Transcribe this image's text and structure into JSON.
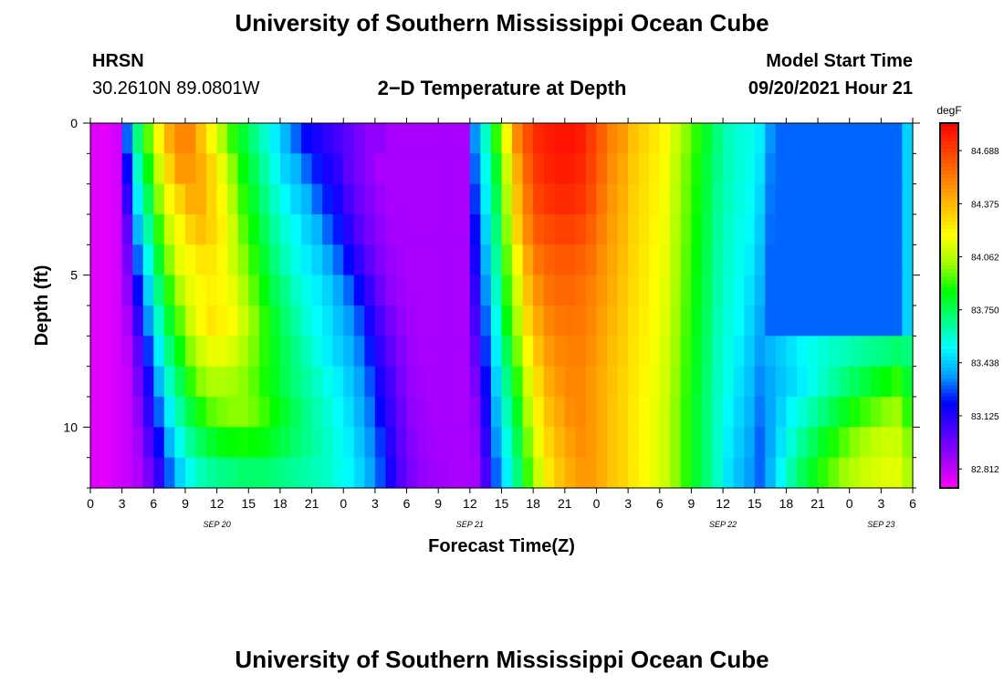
{
  "header": {
    "title": "University of Southern Mississippi Ocean Cube",
    "station_id": "HRSN",
    "station_coords": "30.2610N  89.0801W",
    "plot_title": "2−D Temperature at Depth",
    "model_label": "Model Start Time",
    "model_time": "09/20/2021 Hour 21"
  },
  "footer": {
    "title": "University of Southern Mississippi Ocean Cube"
  },
  "chart_data": {
    "type": "heatmap",
    "title": "2−D Temperature at Depth",
    "xlabel": "Forecast Time(Z)",
    "ylabel": "Depth (ft)",
    "ylim": [
      0,
      12
    ],
    "y_ticks": [
      0,
      5,
      10
    ],
    "x_range_hours": [
      0,
      78
    ],
    "x_tick_labels": [
      "0",
      "3",
      "6",
      "9",
      "12",
      "15",
      "18",
      "21",
      "0",
      "3",
      "6",
      "9",
      "12",
      "15",
      "18",
      "21",
      "0",
      "3",
      "6",
      "9",
      "12",
      "15",
      "18",
      "21",
      "0",
      "3",
      "6"
    ],
    "date_labels": [
      {
        "label": "SEP 20",
        "hour": 12
      },
      {
        "label": "SEP 21",
        "hour": 36
      },
      {
        "label": "SEP 22",
        "hour": 60
      },
      {
        "label": "SEP 23",
        "hour": 75
      }
    ],
    "colorbar": {
      "unit": "degF",
      "min": 82.7,
      "max": 84.85,
      "tick_values": [
        "82.812",
        "83.125",
        "83.438",
        "83.750",
        "84.062",
        "84.375",
        "84.688"
      ],
      "colors": [
        "#ff00ff",
        "#a000ff",
        "#5000ff",
        "#0000ff",
        "#00a0ff",
        "#00ffff",
        "#00ff80",
        "#00ff00",
        "#a0ff00",
        "#ffff00",
        "#ffc000",
        "#ff8000",
        "#ff4000",
        "#ff0000"
      ]
    },
    "depth_levels": [
      0.5,
      1.5,
      2.5,
      3.5,
      4.5,
      5.5,
      6.5,
      7.5,
      8.5,
      9.5,
      10.5,
      11.5
    ],
    "time_hours": [
      0,
      1,
      2,
      3,
      4,
      5,
      6,
      7,
      8,
      9,
      10,
      11,
      12,
      13,
      14,
      15,
      16,
      17,
      18,
      19,
      20,
      21,
      22,
      23,
      24,
      25,
      26,
      27,
      28,
      29,
      30,
      31,
      32,
      33,
      34,
      35,
      36,
      37,
      38,
      39,
      40,
      41,
      42,
      43,
      44,
      45,
      46,
      47,
      48,
      49,
      50,
      51,
      52,
      53,
      54,
      55,
      56,
      57,
      58,
      59,
      60,
      61,
      62,
      63,
      64,
      65,
      66,
      67,
      68,
      69,
      70,
      71,
      72,
      73,
      74,
      75,
      76,
      77
    ],
    "values": [
      [
        82.75,
        82.75,
        82.78,
        83.3,
        83.7,
        83.95,
        84.2,
        84.4,
        84.5,
        84.5,
        84.35,
        84.2,
        84.05,
        83.9,
        83.8,
        83.7,
        83.6,
        83.5,
        83.4,
        83.3,
        83.2,
        83.15,
        83.1,
        83.05,
        83.0,
        82.95,
        82.9,
        82.9,
        82.85,
        82.85,
        82.85,
        82.85,
        82.85,
        82.85,
        82.85,
        82.85,
        83.35,
        83.6,
        83.9,
        84.2,
        84.5,
        84.65,
        84.75,
        84.78,
        84.8,
        84.8,
        84.78,
        84.7,
        84.6,
        84.5,
        84.45,
        84.35,
        84.3,
        84.25,
        84.2,
        84.1,
        84.0,
        83.9,
        83.8,
        83.7,
        83.62,
        83.58,
        83.56,
        83.5,
        83.35,
        83.3,
        83.3,
        83.3,
        83.3,
        83.3,
        83.3,
        83.3,
        83.3,
        83.3,
        83.3,
        83.3,
        83.3,
        83.45
      ],
      [
        82.75,
        82.75,
        82.78,
        83.2,
        83.6,
        83.85,
        84.1,
        84.3,
        84.45,
        84.45,
        84.4,
        84.3,
        84.15,
        84.0,
        83.85,
        83.75,
        83.65,
        83.55,
        83.45,
        83.4,
        83.3,
        83.22,
        83.15,
        83.1,
        83.0,
        82.95,
        82.9,
        82.85,
        82.85,
        82.85,
        82.85,
        82.85,
        82.85,
        82.85,
        82.85,
        82.85,
        83.3,
        83.55,
        83.8,
        84.1,
        84.4,
        84.6,
        84.72,
        84.76,
        84.78,
        84.78,
        84.75,
        84.68,
        84.58,
        84.48,
        84.42,
        84.33,
        84.28,
        84.23,
        84.18,
        84.08,
        83.98,
        83.88,
        83.78,
        83.68,
        83.62,
        83.58,
        83.55,
        83.48,
        83.33,
        83.3,
        83.3,
        83.3,
        83.3,
        83.3,
        83.3,
        83.3,
        83.3,
        83.3,
        83.3,
        83.3,
        83.3,
        83.45
      ],
      [
        82.75,
        82.75,
        82.78,
        83.1,
        83.5,
        83.75,
        84.0,
        84.2,
        84.3,
        84.4,
        84.4,
        84.3,
        84.2,
        84.05,
        83.9,
        83.8,
        83.7,
        83.6,
        83.52,
        83.45,
        83.4,
        83.3,
        83.22,
        83.15,
        83.05,
        82.98,
        82.92,
        82.88,
        82.85,
        82.85,
        82.85,
        82.85,
        82.85,
        82.85,
        82.85,
        82.85,
        83.25,
        83.5,
        83.75,
        84.05,
        84.35,
        84.55,
        84.68,
        84.72,
        84.74,
        84.74,
        84.72,
        84.65,
        84.55,
        84.46,
        84.4,
        84.31,
        84.27,
        84.22,
        84.17,
        84.07,
        83.97,
        83.87,
        83.77,
        83.67,
        83.61,
        83.57,
        83.54,
        83.46,
        83.32,
        83.3,
        83.3,
        83.3,
        83.3,
        83.3,
        83.3,
        83.3,
        83.3,
        83.3,
        83.3,
        83.3,
        83.3,
        83.45
      ],
      [
        82.75,
        82.75,
        82.78,
        83.0,
        83.4,
        83.65,
        83.9,
        84.1,
        84.2,
        84.3,
        84.35,
        84.3,
        84.22,
        84.1,
        83.95,
        83.85,
        83.75,
        83.65,
        83.58,
        83.52,
        83.45,
        83.4,
        83.3,
        83.22,
        83.12,
        83.02,
        82.95,
        82.9,
        82.86,
        82.85,
        82.85,
        82.85,
        82.85,
        82.85,
        82.85,
        82.85,
        83.2,
        83.45,
        83.7,
        84.0,
        84.3,
        84.5,
        84.62,
        84.66,
        84.68,
        84.68,
        84.66,
        84.6,
        84.52,
        84.44,
        84.38,
        84.3,
        84.26,
        84.21,
        84.16,
        84.06,
        83.96,
        83.86,
        83.76,
        83.66,
        83.6,
        83.56,
        83.52,
        83.44,
        83.31,
        83.3,
        83.3,
        83.3,
        83.3,
        83.3,
        83.3,
        83.3,
        83.3,
        83.3,
        83.3,
        83.3,
        83.3,
        83.45
      ],
      [
        82.75,
        82.75,
        82.78,
        82.95,
        83.3,
        83.55,
        83.8,
        84.0,
        84.15,
        84.2,
        84.25,
        84.25,
        84.2,
        84.1,
        84.0,
        83.9,
        83.8,
        83.7,
        83.62,
        83.56,
        83.5,
        83.45,
        83.38,
        83.3,
        83.2,
        83.1,
        83.0,
        82.93,
        82.88,
        82.86,
        82.85,
        82.85,
        82.85,
        82.85,
        82.85,
        82.85,
        83.15,
        83.4,
        83.65,
        83.95,
        84.2,
        84.42,
        84.55,
        84.6,
        84.62,
        84.62,
        84.6,
        84.56,
        84.48,
        84.42,
        84.36,
        84.29,
        84.25,
        84.2,
        84.15,
        84.05,
        83.95,
        83.85,
        83.75,
        83.65,
        83.59,
        83.55,
        83.5,
        83.42,
        83.3,
        83.3,
        83.3,
        83.3,
        83.3,
        83.3,
        83.3,
        83.3,
        83.3,
        83.3,
        83.3,
        83.3,
        83.3,
        83.45
      ],
      [
        82.75,
        82.75,
        82.78,
        82.9,
        83.2,
        83.45,
        83.7,
        83.9,
        84.05,
        84.15,
        84.2,
        84.22,
        84.2,
        84.15,
        84.05,
        83.95,
        83.85,
        83.75,
        83.68,
        83.6,
        83.55,
        83.5,
        83.45,
        83.38,
        83.3,
        83.2,
        83.08,
        82.98,
        82.9,
        82.87,
        82.85,
        82.85,
        82.85,
        82.85,
        82.85,
        82.85,
        83.1,
        83.35,
        83.6,
        83.9,
        84.12,
        84.35,
        84.48,
        84.55,
        84.58,
        84.58,
        84.56,
        84.52,
        84.46,
        84.4,
        84.34,
        84.28,
        84.24,
        84.19,
        84.14,
        84.04,
        83.94,
        83.84,
        83.74,
        83.64,
        83.58,
        83.54,
        83.48,
        83.4,
        83.3,
        83.3,
        83.3,
        83.3,
        83.3,
        83.3,
        83.3,
        83.3,
        83.3,
        83.3,
        83.3,
        83.3,
        83.3,
        83.45
      ],
      [
        82.75,
        82.75,
        82.78,
        82.85,
        83.1,
        83.35,
        83.6,
        83.8,
        83.95,
        84.1,
        84.2,
        84.25,
        84.22,
        84.18,
        84.1,
        84.0,
        83.9,
        83.8,
        83.72,
        83.65,
        83.58,
        83.53,
        83.48,
        83.42,
        83.36,
        83.28,
        83.15,
        83.05,
        82.95,
        82.9,
        82.86,
        82.85,
        82.85,
        82.85,
        82.85,
        82.85,
        83.05,
        83.3,
        83.55,
        83.85,
        84.05,
        84.28,
        84.42,
        84.5,
        84.54,
        84.55,
        84.54,
        84.5,
        84.44,
        84.38,
        84.33,
        84.27,
        84.23,
        84.18,
        84.13,
        84.03,
        83.93,
        83.83,
        83.73,
        83.63,
        83.57,
        83.53,
        83.46,
        83.38,
        83.3,
        83.3,
        83.3,
        83.3,
        83.3,
        83.3,
        83.3,
        83.3,
        83.3,
        83.3,
        83.3,
        83.3,
        83.3,
        83.45
      ],
      [
        82.75,
        82.75,
        82.78,
        82.82,
        83.0,
        83.25,
        83.5,
        83.7,
        83.85,
        84.0,
        84.1,
        84.15,
        84.15,
        84.12,
        84.05,
        83.98,
        83.9,
        83.82,
        83.75,
        83.68,
        83.62,
        83.56,
        83.5,
        83.45,
        83.4,
        83.33,
        83.22,
        83.1,
        83.0,
        82.92,
        82.87,
        82.85,
        82.85,
        82.85,
        82.85,
        82.85,
        83.0,
        83.25,
        83.5,
        83.75,
        83.98,
        84.2,
        84.35,
        84.45,
        84.5,
        84.52,
        84.52,
        84.48,
        84.42,
        84.36,
        84.32,
        84.26,
        84.22,
        84.17,
        84.12,
        84.02,
        83.92,
        83.82,
        83.72,
        83.62,
        83.56,
        83.5,
        83.44,
        83.36,
        83.4,
        83.44,
        83.48,
        83.52,
        83.55,
        83.58,
        83.6,
        83.62,
        83.64,
        83.66,
        83.68,
        83.7,
        83.72,
        83.7
      ],
      [
        82.75,
        82.75,
        82.78,
        82.8,
        82.95,
        83.15,
        83.4,
        83.6,
        83.75,
        83.9,
        84.0,
        84.05,
        84.05,
        84.03,
        84.0,
        83.95,
        83.88,
        83.82,
        83.76,
        83.7,
        83.65,
        83.6,
        83.55,
        83.5,
        83.44,
        83.37,
        83.28,
        83.15,
        83.05,
        82.95,
        82.88,
        82.86,
        82.85,
        82.85,
        82.85,
        82.85,
        82.95,
        83.2,
        83.45,
        83.68,
        83.9,
        84.12,
        84.28,
        84.4,
        84.46,
        84.5,
        84.5,
        84.46,
        84.4,
        84.35,
        84.3,
        84.25,
        84.21,
        84.16,
        84.11,
        84.01,
        83.91,
        83.81,
        83.71,
        83.61,
        83.55,
        83.48,
        83.42,
        83.34,
        83.38,
        83.42,
        83.46,
        83.5,
        83.55,
        83.6,
        83.65,
        83.7,
        83.74,
        83.78,
        83.82,
        83.86,
        83.9,
        83.8
      ],
      [
        82.75,
        82.75,
        82.78,
        82.8,
        82.9,
        83.1,
        83.3,
        83.5,
        83.65,
        83.78,
        83.88,
        83.95,
        83.98,
        84.0,
        84.0,
        83.97,
        83.92,
        83.86,
        83.8,
        83.74,
        83.68,
        83.63,
        83.58,
        83.53,
        83.47,
        83.4,
        83.32,
        83.2,
        83.08,
        82.98,
        82.9,
        82.87,
        82.85,
        82.85,
        82.85,
        82.85,
        82.9,
        83.15,
        83.4,
        83.62,
        83.82,
        84.05,
        84.22,
        84.35,
        84.42,
        84.48,
        84.5,
        84.46,
        84.4,
        84.34,
        84.3,
        84.24,
        84.2,
        84.15,
        84.1,
        84.0,
        83.9,
        83.8,
        83.7,
        83.6,
        83.52,
        83.46,
        83.4,
        83.32,
        83.38,
        83.45,
        83.52,
        83.58,
        83.64,
        83.7,
        83.76,
        83.82,
        83.88,
        83.92,
        83.96,
        84.0,
        84.02,
        83.9
      ],
      [
        82.75,
        82.75,
        82.78,
        82.8,
        82.86,
        83.02,
        83.2,
        83.4,
        83.55,
        83.66,
        83.74,
        83.8,
        83.84,
        83.86,
        83.87,
        83.86,
        83.84,
        83.8,
        83.76,
        83.72,
        83.68,
        83.64,
        83.6,
        83.55,
        83.5,
        83.43,
        83.35,
        83.25,
        83.12,
        83.0,
        82.92,
        82.88,
        82.86,
        82.85,
        82.85,
        82.85,
        82.88,
        83.1,
        83.35,
        83.56,
        83.76,
        83.98,
        84.16,
        84.3,
        84.38,
        84.44,
        84.48,
        84.46,
        84.4,
        84.34,
        84.3,
        84.24,
        84.2,
        84.15,
        84.1,
        84.0,
        83.9,
        83.8,
        83.7,
        83.6,
        83.5,
        83.44,
        83.38,
        83.3,
        83.38,
        83.48,
        83.58,
        83.66,
        83.74,
        83.82,
        83.88,
        83.94,
        84.0,
        84.04,
        84.08,
        84.1,
        84.1,
        84.0
      ],
      [
        82.75,
        82.75,
        82.78,
        82.8,
        82.84,
        82.95,
        83.1,
        83.3,
        83.45,
        83.55,
        83.62,
        83.66,
        83.68,
        83.7,
        83.72,
        83.72,
        83.72,
        83.7,
        83.68,
        83.66,
        83.64,
        83.62,
        83.6,
        83.56,
        83.52,
        83.46,
        83.38,
        83.28,
        83.15,
        83.02,
        82.94,
        82.89,
        82.87,
        82.86,
        82.85,
        82.85,
        82.86,
        83.05,
        83.3,
        83.5,
        83.7,
        83.92,
        84.1,
        84.25,
        84.34,
        84.4,
        84.45,
        84.45,
        84.4,
        84.34,
        84.3,
        84.24,
        84.2,
        84.15,
        84.1,
        84.0,
        83.9,
        83.8,
        83.7,
        83.6,
        83.48,
        83.42,
        83.36,
        83.3,
        83.4,
        83.52,
        83.64,
        83.74,
        83.82,
        83.9,
        83.96,
        84.02,
        84.06,
        84.1,
        84.12,
        84.14,
        84.14,
        84.05
      ]
    ]
  }
}
